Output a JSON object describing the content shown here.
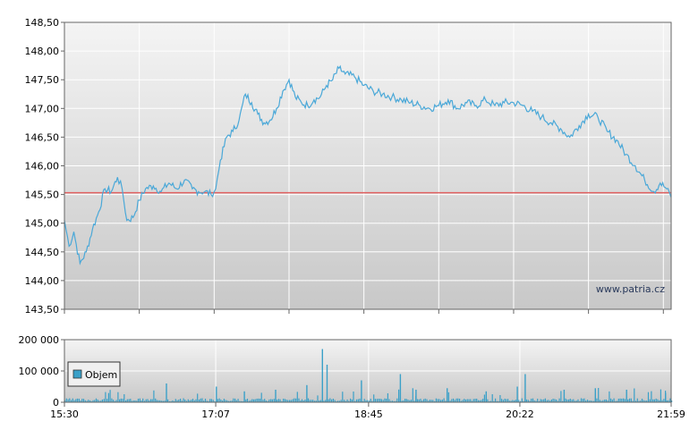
{
  "watermark": "www.patria.cz",
  "legend_label": "Objem",
  "colors": {
    "line": "#4aa8d8",
    "reference": "#e06060",
    "bars": "#3aa0c8",
    "grid": "#ffffff",
    "frame": "#666666",
    "bg_top": "#f4f4f4",
    "bg_bottom": "#c8c8c8"
  },
  "chart_data": [
    {
      "type": "line",
      "ylim": [
        143.5,
        148.5
      ],
      "y_ticks": [
        "148,50",
        "148,00",
        "147,50",
        "147,00",
        "146,50",
        "146,00",
        "145,50",
        "145,00",
        "144,50",
        "144,00",
        "143,50"
      ],
      "reference_line": 145.53,
      "x_range": [
        "15:30",
        "21:59"
      ],
      "series": [
        {
          "points": [
            [
              "15:30",
              145.05
            ],
            [
              "15:33",
              144.6
            ],
            [
              "15:36",
              144.85
            ],
            [
              "15:40",
              144.3
            ],
            [
              "15:44",
              144.5
            ],
            [
              "15:48",
              144.9
            ],
            [
              "15:52",
              145.2
            ],
            [
              "15:56",
              145.6
            ],
            [
              "16:00",
              145.55
            ],
            [
              "16:04",
              145.8
            ],
            [
              "16:07",
              145.6
            ],
            [
              "16:10",
              145.05
            ],
            [
              "16:14",
              145.1
            ],
            [
              "16:18",
              145.4
            ],
            [
              "16:22",
              145.6
            ],
            [
              "16:27",
              145.65
            ],
            [
              "16:32",
              145.55
            ],
            [
              "16:37",
              145.7
            ],
            [
              "16:42",
              145.6
            ],
            [
              "16:47",
              145.75
            ],
            [
              "16:52",
              145.6
            ],
            [
              "16:56",
              145.55
            ],
            [
              "17:00",
              145.55
            ],
            [
              "17:04",
              145.5
            ],
            [
              "17:07",
              145.6
            ],
            [
              "17:10",
              146.1
            ],
            [
              "17:14",
              146.5
            ],
            [
              "17:18",
              146.6
            ],
            [
              "17:22",
              146.8
            ],
            [
              "17:26",
              147.25
            ],
            [
              "17:30",
              147.1
            ],
            [
              "17:34",
              146.9
            ],
            [
              "17:38",
              146.75
            ],
            [
              "17:42",
              146.8
            ],
            [
              "17:46",
              147.0
            ],
            [
              "17:50",
              147.3
            ],
            [
              "17:54",
              147.5
            ],
            [
              "17:58",
              147.2
            ],
            [
              "18:02",
              147.1
            ],
            [
              "18:06",
              147.05
            ],
            [
              "18:10",
              147.15
            ],
            [
              "18:14",
              147.2
            ],
            [
              "18:18",
              147.4
            ],
            [
              "18:22",
              147.5
            ],
            [
              "18:26",
              147.7
            ],
            [
              "18:30",
              147.6
            ],
            [
              "18:36",
              147.55
            ],
            [
              "18:42",
              147.4
            ],
            [
              "18:48",
              147.3
            ],
            [
              "18:54",
              147.25
            ],
            [
              "19:00",
              147.2
            ],
            [
              "19:06",
              147.15
            ],
            [
              "19:12",
              147.1
            ],
            [
              "19:18",
              147.05
            ],
            [
              "19:24",
              147.0
            ],
            [
              "19:30",
              147.05
            ],
            [
              "19:36",
              147.15
            ],
            [
              "19:42",
              147.0
            ],
            [
              "19:48",
              147.1
            ],
            [
              "19:54",
              147.05
            ],
            [
              "20:00",
              147.15
            ],
            [
              "20:06",
              147.05
            ],
            [
              "20:12",
              147.1
            ],
            [
              "20:18",
              147.1
            ],
            [
              "20:24",
              147.05
            ],
            [
              "20:30",
              146.95
            ],
            [
              "20:36",
              146.85
            ],
            [
              "20:42",
              146.75
            ],
            [
              "20:48",
              146.65
            ],
            [
              "20:54",
              146.5
            ],
            [
              "21:00",
              146.7
            ],
            [
              "21:06",
              146.9
            ],
            [
              "21:12",
              146.85
            ],
            [
              "21:18",
              146.6
            ],
            [
              "21:24",
              146.45
            ],
            [
              "21:30",
              146.2
            ],
            [
              "21:36",
              146.0
            ],
            [
              "21:42",
              145.75
            ],
            [
              "21:48",
              145.55
            ],
            [
              "21:52",
              145.7
            ],
            [
              "21:56",
              145.6
            ],
            [
              "21:59",
              145.45
            ]
          ]
        }
      ]
    },
    {
      "type": "bar",
      "ylim": [
        0,
        200000
      ],
      "y_ticks": [
        "200 000",
        "100 000",
        "0"
      ],
      "x_ticks": [
        "15:30",
        "17:07",
        "18:45",
        "20:22",
        "21:59"
      ],
      "series": [
        {
          "name": "Objem",
          "base_level": 8000,
          "spikes": [
            [
              "16:35",
              60000
            ],
            [
              "17:07",
              50000
            ],
            [
              "17:25",
              35000
            ],
            [
              "17:45",
              40000
            ],
            [
              "18:05",
              55000
            ],
            [
              "18:15",
              170000
            ],
            [
              "18:18",
              120000
            ],
            [
              "18:40",
              70000
            ],
            [
              "19:05",
              90000
            ],
            [
              "19:15",
              40000
            ],
            [
              "19:35",
              45000
            ],
            [
              "20:00",
              35000
            ],
            [
              "20:20",
              50000
            ],
            [
              "20:25",
              90000
            ],
            [
              "20:50",
              40000
            ],
            [
              "21:10",
              45000
            ],
            [
              "21:30",
              40000
            ],
            [
              "21:55",
              30000
            ]
          ]
        }
      ]
    }
  ]
}
